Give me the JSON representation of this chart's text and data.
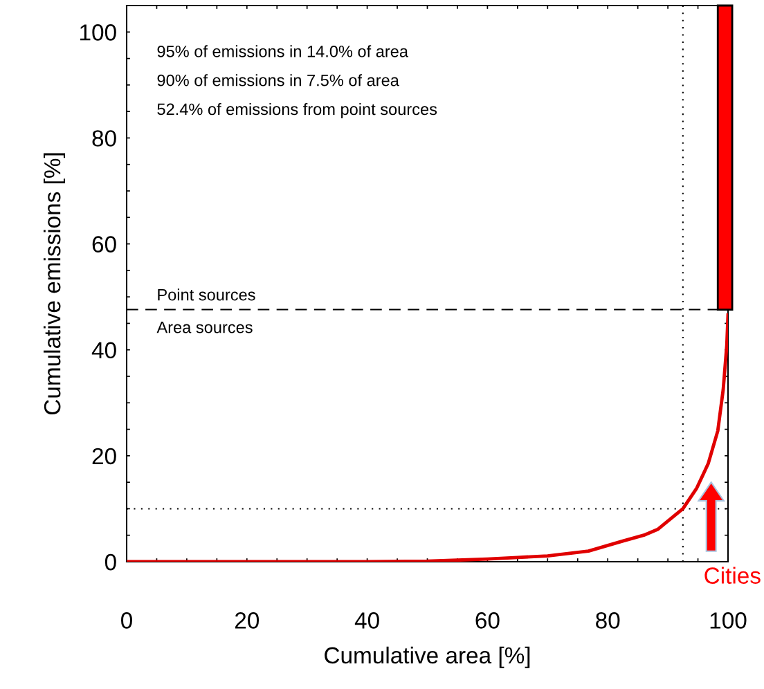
{
  "chart_data": {
    "type": "line",
    "xlabel": "Cumulative area [%]",
    "ylabel": "Cumulative emissions [%]",
    "xlim": [
      0,
      100
    ],
    "ylim": [
      0,
      105
    ],
    "xticks": [
      0,
      {
        "value": 5,
        "label": null
      },
      {
        "value": 10,
        "label": null
      },
      {
        "value": 15,
        "label": null
      },
      20,
      {
        "value": 25,
        "label": null
      },
      {
        "value": 30,
        "label": null
      },
      {
        "value": 35,
        "label": null
      },
      40,
      {
        "value": 45,
        "label": null
      },
      {
        "value": 50,
        "label": null
      },
      {
        "value": 55,
        "label": null
      },
      60,
      {
        "value": 65,
        "label": null
      },
      {
        "value": 70,
        "label": null
      },
      {
        "value": 75,
        "label": null
      },
      80,
      {
        "value": 85,
        "label": null
      },
      {
        "value": 90,
        "label": null
      },
      {
        "value": 95,
        "label": null
      },
      100
    ],
    "yticks": [
      0,
      {
        "value": 5,
        "label": null
      },
      {
        "value": 10,
        "label": null
      },
      {
        "value": 15,
        "label": null
      },
      20,
      {
        "value": 25,
        "label": null
      },
      {
        "value": 30,
        "label": null
      },
      {
        "value": 35,
        "label": null
      },
      40,
      {
        "value": 45,
        "label": null
      },
      {
        "value": 50,
        "label": null
      },
      {
        "value": 55,
        "label": null
      },
      60,
      {
        "value": 65,
        "label": null
      },
      {
        "value": 70,
        "label": null
      },
      {
        "value": 75,
        "label": null
      },
      80,
      {
        "value": 85,
        "label": null
      },
      {
        "value": 90,
        "label": null
      },
      {
        "value": 95,
        "label": null
      },
      100
    ],
    "series": [
      {
        "color": "#e00000",
        "x": [
          0,
          40,
          50,
          60,
          65,
          70,
          76.8,
          82.5,
          86,
          88.3,
          92.5,
          94.8,
          96.7,
          98.3,
          99.2,
          99.8,
          100
        ],
        "values": [
          0,
          0,
          0.1,
          0.5,
          0.8,
          1.1,
          2.0,
          3.9,
          5.0,
          6.1,
          10,
          13.9,
          18.5,
          24.7,
          32.5,
          40.9,
          46.6
        ]
      },
      {
        "type": "bar",
        "color": "#ff0000",
        "x": [
          99.5
        ],
        "values": [
          57.4
        ],
        "base": [
          47.6
        ]
      }
    ],
    "ref_lines": [
      {
        "axis": "y",
        "value": 47.6,
        "label": "Point sources",
        "line_style": "dashed",
        "color": "#000000"
      },
      {
        "axis": "y",
        "value": 10,
        "line_style": "dotted",
        "color": "#000000"
      },
      {
        "axis": "x",
        "value": 92.5,
        "line_style": "dotted",
        "color": "#000000"
      }
    ],
    "annotations": [
      "95% of emissions in 14.0% of area",
      "90% of emissions in 7.5% of area",
      "52.4% of emissions from point sources",
      {
        "text": "Area sources",
        "x": 5,
        "y": 47.6
      },
      "Cities"
    ],
    "grid": false,
    "marker": "none",
    "line_style": "solid"
  }
}
